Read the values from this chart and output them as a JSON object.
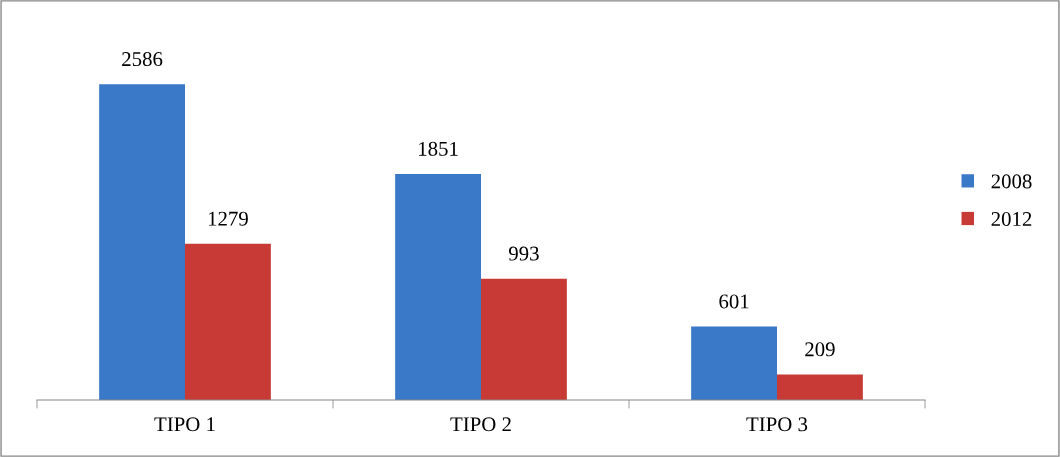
{
  "chart_data": {
    "type": "bar",
    "categories": [
      "TIPO 1",
      "TIPO 2",
      "TIPO 3"
    ],
    "series": [
      {
        "name": "2008",
        "color": "#3a78c8",
        "values": [
          2586,
          1851,
          601
        ]
      },
      {
        "name": "2012",
        "color": "#c83a36",
        "values": [
          1279,
          993,
          209
        ]
      }
    ],
    "data_labels": true,
    "legend": "right",
    "grid": false
  }
}
